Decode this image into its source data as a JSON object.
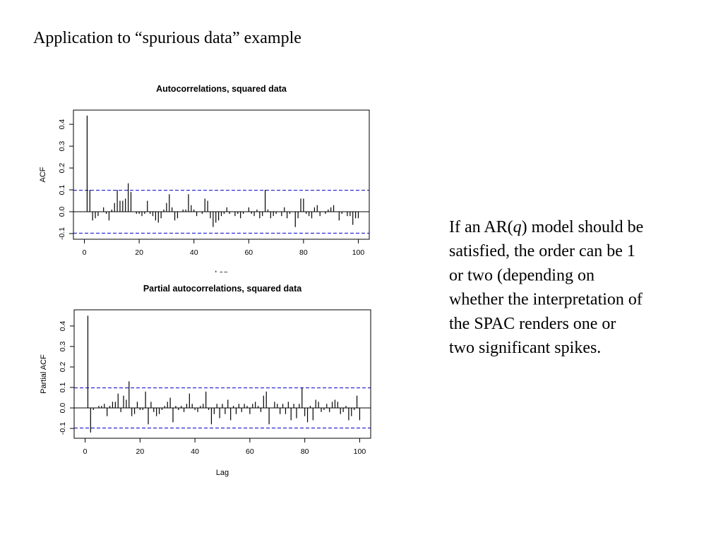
{
  "title": "Application to “spurious data” example",
  "paragraph": [
    [
      "If an AR(",
      "q",
      ") model should be"
    ],
    [
      "satisfied, the order can be 1"
    ],
    [
      "or two (depending on"
    ],
    [
      "whether the interpretation of"
    ],
    [
      "the SPAC renders one or"
    ],
    [
      "two significant spikes."
    ]
  ],
  "chart_data": [
    {
      "type": "stem",
      "title": "Autocorrelations, squared data",
      "xlabel": "Lag",
      "ylabel": "ACF",
      "color": "#000000",
      "band_color": "#0000cc",
      "confidence_band": [
        -0.098,
        0.098
      ],
      "xlim": [
        -4,
        104
      ],
      "ylim": [
        -0.126,
        0.465
      ],
      "xticks": [
        0,
        20,
        40,
        60,
        80,
        100
      ],
      "yticks": [
        -0.1,
        {
          "value": 0,
          "label": "0.0"
        },
        0.1,
        0.2,
        0.3,
        0.4
      ],
      "x": [
        1,
        2,
        3,
        4,
        5,
        6,
        7,
        8,
        9,
        10,
        11,
        12,
        13,
        14,
        15,
        16,
        17,
        18,
        19,
        20,
        21,
        22,
        23,
        24,
        25,
        26,
        27,
        28,
        29,
        30,
        31,
        32,
        33,
        34,
        35,
        36,
        37,
        38,
        39,
        40,
        41,
        42,
        43,
        44,
        45,
        46,
        47,
        48,
        49,
        50,
        51,
        52,
        53,
        54,
        55,
        56,
        57,
        58,
        59,
        60,
        61,
        62,
        63,
        64,
        65,
        66,
        67,
        68,
        69,
        70,
        71,
        72,
        73,
        74,
        75,
        76,
        77,
        78,
        79,
        80,
        81,
        82,
        83,
        84,
        85,
        86,
        87,
        88,
        89,
        90,
        91,
        92,
        93,
        94,
        95,
        96,
        97,
        98,
        99,
        100
      ],
      "values": [
        0.44,
        0.1,
        -0.04,
        -0.03,
        -0.02,
        0.0,
        0.02,
        -0.01,
        -0.04,
        0.01,
        0.04,
        0.1,
        0.05,
        0.05,
        0.06,
        0.13,
        0.09,
        0.0,
        -0.01,
        -0.01,
        -0.02,
        -0.01,
        0.05,
        -0.01,
        -0.02,
        -0.04,
        -0.05,
        -0.03,
        0.01,
        0.04,
        0.08,
        0.02,
        -0.04,
        -0.03,
        0.0,
        0.01,
        0.01,
        0.08,
        0.03,
        0.01,
        -0.02,
        0.0,
        -0.01,
        0.06,
        0.05,
        -0.03,
        -0.07,
        -0.05,
        -0.04,
        -0.02,
        -0.01,
        0.02,
        -0.01,
        0.0,
        -0.02,
        -0.01,
        -0.03,
        -0.01,
        0.0,
        0.02,
        -0.01,
        -0.02,
        0.01,
        -0.03,
        -0.02,
        0.1,
        0.01,
        -0.03,
        -0.02,
        -0.01,
        0.0,
        -0.02,
        0.02,
        -0.03,
        -0.01,
        0.0,
        -0.07,
        -0.03,
        0.06,
        0.06,
        -0.01,
        -0.02,
        -0.03,
        0.02,
        0.03,
        -0.02,
        0.0,
        -0.01,
        0.01,
        0.02,
        0.03,
        0.0,
        -0.04,
        -0.01,
        0.0,
        -0.02,
        -0.02,
        -0.06,
        -0.03,
        -0.03
      ]
    },
    {
      "type": "stem",
      "title": "Partial autocorrelations, squared data",
      "xlabel": "Lag",
      "ylabel": "Partial ACF",
      "color": "#000000",
      "band_color": "#0000cc",
      "confidence_band": [
        -0.098,
        0.098
      ],
      "xlim": [
        -4,
        104
      ],
      "ylim": [
        -0.148,
        0.479
      ],
      "xticks": [
        0,
        20,
        40,
        60,
        80,
        100
      ],
      "yticks": [
        -0.1,
        {
          "value": 0,
          "label": "0.0"
        },
        0.1,
        0.2,
        0.3,
        0.4
      ],
      "x": [
        1,
        2,
        3,
        4,
        5,
        6,
        7,
        8,
        9,
        10,
        11,
        12,
        13,
        14,
        15,
        16,
        17,
        18,
        19,
        20,
        21,
        22,
        23,
        24,
        25,
        26,
        27,
        28,
        29,
        30,
        31,
        32,
        33,
        34,
        35,
        36,
        37,
        38,
        39,
        40,
        41,
        42,
        43,
        44,
        45,
        46,
        47,
        48,
        49,
        50,
        51,
        52,
        53,
        54,
        55,
        56,
        57,
        58,
        59,
        60,
        61,
        62,
        63,
        64,
        65,
        66,
        67,
        68,
        69,
        70,
        71,
        72,
        73,
        74,
        75,
        76,
        77,
        78,
        79,
        80,
        81,
        82,
        83,
        84,
        85,
        86,
        87,
        88,
        89,
        90,
        91,
        92,
        93,
        94,
        95,
        96,
        97,
        98,
        99,
        100
      ],
      "values": [
        0.45,
        -0.12,
        -0.01,
        0.0,
        0.01,
        0.01,
        0.02,
        -0.04,
        0.01,
        0.03,
        0.03,
        0.07,
        -0.02,
        0.06,
        0.04,
        0.13,
        -0.04,
        -0.03,
        0.03,
        -0.01,
        -0.01,
        0.08,
        -0.08,
        0.03,
        -0.02,
        -0.04,
        -0.03,
        -0.01,
        0.01,
        0.03,
        0.05,
        -0.07,
        0.01,
        -0.01,
        0.01,
        -0.02,
        0.02,
        0.07,
        0.02,
        -0.01,
        -0.02,
        0.01,
        0.02,
        0.08,
        -0.01,
        -0.08,
        -0.03,
        0.02,
        -0.05,
        0.02,
        -0.03,
        0.04,
        -0.06,
        0.01,
        -0.03,
        0.02,
        -0.02,
        0.02,
        0.01,
        -0.03,
        0.02,
        0.03,
        0.01,
        -0.02,
        0.06,
        0.08,
        -0.08,
        0.0,
        0.03,
        0.02,
        -0.03,
        0.02,
        -0.03,
        0.03,
        -0.06,
        0.02,
        -0.05,
        0.02,
        0.1,
        -0.04,
        -0.07,
        0.01,
        -0.06,
        0.04,
        0.03,
        -0.02,
        -0.01,
        0.02,
        -0.02,
        0.03,
        0.04,
        0.03,
        -0.03,
        -0.02,
        0.01,
        -0.06,
        -0.04,
        -0.01,
        0.06,
        -0.06
      ]
    }
  ]
}
